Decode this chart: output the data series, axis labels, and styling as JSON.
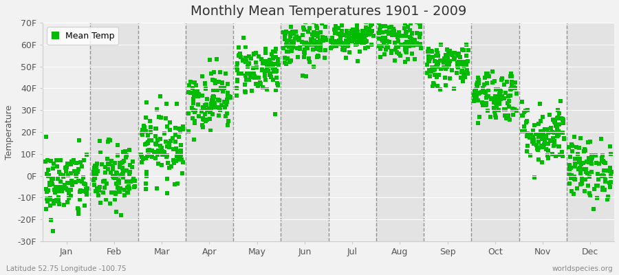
{
  "title": "Monthly Mean Temperatures 1901 - 2009",
  "ylabel": "Temperature",
  "xlabel": "",
  "ylim": [
    -30,
    70
  ],
  "yticks": [
    -30,
    -20,
    -10,
    0,
    10,
    20,
    30,
    40,
    50,
    60,
    70
  ],
  "ytick_labels": [
    "-30F",
    "-20F",
    "-10F",
    "0F",
    "10F",
    "20F",
    "30F",
    "40F",
    "50F",
    "60F",
    "70F"
  ],
  "months": [
    "Jan",
    "Feb",
    "Mar",
    "Apr",
    "May",
    "Jun",
    "Jul",
    "Aug",
    "Sep",
    "Oct",
    "Nov",
    "Dec"
  ],
  "mean_temps_F": [
    -4,
    -1,
    14,
    35,
    49,
    60,
    64,
    62,
    51,
    37,
    19,
    3
  ],
  "std_temps_F": [
    8,
    8,
    8,
    7,
    6,
    5,
    4,
    5,
    5,
    6,
    7,
    7
  ],
  "n_years": 109,
  "dot_color": "#00bb00",
  "dot_size": 18,
  "bg_color": "#f2f2f2",
  "band_light": "#efefef",
  "band_dark": "#e3e3e3",
  "legend_label": "Mean Temp",
  "bottom_left_text": "Latitude 52.75 Longitude -100.75",
  "bottom_right_text": "worldspecies.org",
  "title_fontsize": 14,
  "label_fontsize": 9,
  "tick_fontsize": 9,
  "random_seed": 42
}
